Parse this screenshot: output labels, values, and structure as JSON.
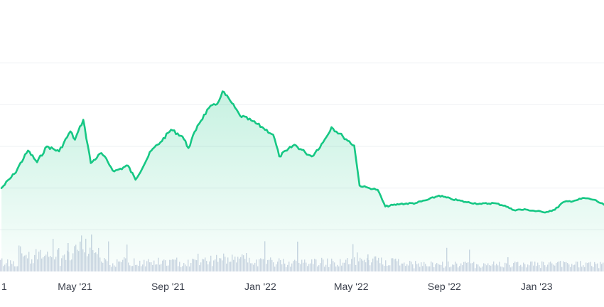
{
  "chart_data": {
    "type": "area",
    "title": "",
    "xlabel": "",
    "ylabel": "",
    "x_range": [
      "2021-01-22",
      "2023-03-31"
    ],
    "ylim": [
      0,
      30
    ],
    "grid": "horizontal",
    "line_color": "#16c784",
    "fill_color": "#16c784",
    "volume_color": "#cfd6e4",
    "x_ticks": [
      {
        "date": "2021-05-01",
        "label": "May '21"
      },
      {
        "date": "2021-09-01",
        "label": "Sep '21"
      },
      {
        "date": "2022-01-01",
        "label": "Jan '22"
      },
      {
        "date": "2022-05-01",
        "label": "May '22"
      },
      {
        "date": "2022-09-01",
        "label": "Sep '22"
      },
      {
        "date": "2023-01-01",
        "label": "Jan '23"
      }
    ],
    "x_partial_left_label": "1",
    "y_gridlines": [
      5,
      10,
      15,
      20,
      25
    ],
    "series": [
      {
        "values": [
          [
            "2021-01-24",
            10.0
          ],
          [
            "2021-02-10",
            11.7
          ],
          [
            "2021-02-28",
            14.5
          ],
          [
            "2021-03-12",
            13.1
          ],
          [
            "2021-03-25",
            15.0
          ],
          [
            "2021-04-10",
            14.4
          ],
          [
            "2021-04-25",
            16.8
          ],
          [
            "2021-05-01",
            15.8
          ],
          [
            "2021-05-12",
            18.2
          ],
          [
            "2021-05-22",
            13.0
          ],
          [
            "2021-06-05",
            14.2
          ],
          [
            "2021-06-22",
            12.0
          ],
          [
            "2021-07-10",
            12.7
          ],
          [
            "2021-07-20",
            11.0
          ],
          [
            "2021-08-10",
            14.5
          ],
          [
            "2021-08-22",
            15.5
          ],
          [
            "2021-09-05",
            17.0
          ],
          [
            "2021-09-20",
            16.2
          ],
          [
            "2021-09-28",
            14.8
          ],
          [
            "2021-10-10",
            17.5
          ],
          [
            "2021-10-25",
            19.6
          ],
          [
            "2021-11-05",
            20.1
          ],
          [
            "2021-11-12",
            21.6
          ],
          [
            "2021-11-22",
            20.5
          ],
          [
            "2021-12-05",
            18.7
          ],
          [
            "2021-12-20",
            18.1
          ],
          [
            "2022-01-05",
            17.2
          ],
          [
            "2022-01-18",
            16.4
          ],
          [
            "2022-01-26",
            13.8
          ],
          [
            "2022-02-05",
            14.5
          ],
          [
            "2022-02-15",
            15.2
          ],
          [
            "2022-03-01",
            14.3
          ],
          [
            "2022-03-10",
            13.8
          ],
          [
            "2022-03-25",
            15.5
          ],
          [
            "2022-04-05",
            17.3
          ],
          [
            "2022-04-20",
            16.2
          ],
          [
            "2022-05-05",
            15.1
          ],
          [
            "2022-05-12",
            10.3
          ],
          [
            "2022-05-25",
            10.0
          ],
          [
            "2022-06-05",
            9.8
          ],
          [
            "2022-06-15",
            7.8
          ],
          [
            "2022-07-05",
            8.1
          ],
          [
            "2022-07-25",
            8.2
          ],
          [
            "2022-08-10",
            8.6
          ],
          [
            "2022-08-25",
            9.1
          ],
          [
            "2022-09-10",
            8.7
          ],
          [
            "2022-10-01",
            8.3
          ],
          [
            "2022-10-20",
            8.1
          ],
          [
            "2022-11-05",
            8.2
          ],
          [
            "2022-11-20",
            7.9
          ],
          [
            "2022-11-30",
            7.4
          ],
          [
            "2022-12-20",
            7.4
          ],
          [
            "2023-01-10",
            7.1
          ],
          [
            "2023-01-25",
            7.4
          ],
          [
            "2023-02-05",
            8.3
          ],
          [
            "2023-02-20",
            8.5
          ],
          [
            "2023-03-05",
            8.8
          ],
          [
            "2023-03-18",
            8.6
          ],
          [
            "2023-03-31",
            8.0
          ]
        ]
      }
    ]
  }
}
